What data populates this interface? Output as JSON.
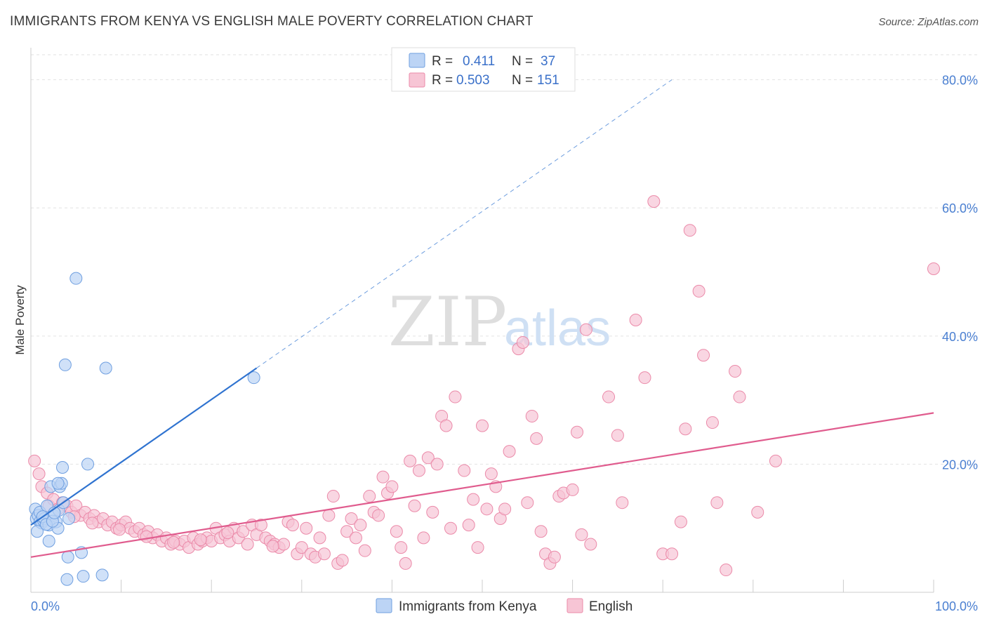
{
  "title": "IMMIGRANTS FROM KENYA VS ENGLISH MALE POVERTY CORRELATION CHART",
  "source": "Source: ZipAtlas.com",
  "watermark": {
    "zip": "ZIP",
    "atlas": "atlas"
  },
  "colors": {
    "blue_fill": "#bcd4f5",
    "blue_stroke": "#6f9fe0",
    "blue_line": "#2f73d0",
    "pink_fill": "#f7c5d5",
    "pink_stroke": "#eb8aa9",
    "pink_line": "#e05c8e",
    "tick_label": "#4a7fd1",
    "grid": "#e2e2e2"
  },
  "legend": {
    "rows": [
      {
        "r_label": "R =",
        "r_value": "0.411",
        "n_label": "N =",
        "n_value": "37",
        "color": "blue"
      },
      {
        "r_label": "R =",
        "r_value": "0.503",
        "n_label": "N =",
        "n_value": "151",
        "color": "pink"
      }
    ]
  },
  "chart_data": {
    "type": "scatter",
    "title": "IMMIGRANTS FROM KENYA VS ENGLISH MALE POVERTY CORRELATION CHART",
    "xlabel": "",
    "ylabel": "Male Poverty",
    "xlim": [
      0,
      100
    ],
    "ylim": [
      0,
      85
    ],
    "x_tick_labels": [
      "0.0%",
      "100.0%"
    ],
    "y_ticks": [
      20,
      40,
      60,
      80
    ],
    "y_tick_labels": [
      "20.0%",
      "40.0%",
      "60.0%",
      "80.0%"
    ],
    "grid": true,
    "legend_position": "top-center",
    "series": [
      {
        "name": "Immigrants from Kenya",
        "color": "blue",
        "trend": {
          "x0": 0,
          "y0": 10.5,
          "x1": 25,
          "y1": 35.0,
          "dash_to_x": 71,
          "dash_to_y": 80.0
        },
        "points": [
          [
            0.5,
            13.0
          ],
          [
            0.6,
            11.5
          ],
          [
            0.8,
            12.0
          ],
          [
            1.0,
            11.0
          ],
          [
            1.2,
            10.8
          ],
          [
            1.4,
            11.2
          ],
          [
            0.7,
            9.5
          ],
          [
            1.0,
            12.5
          ],
          [
            1.5,
            11.5
          ],
          [
            1.8,
            13.5
          ],
          [
            2.0,
            10.5
          ],
          [
            2.2,
            16.5
          ],
          [
            2.5,
            12.0
          ],
          [
            2.8,
            11.0
          ],
          [
            3.0,
            10.0
          ],
          [
            3.1,
            12.8
          ],
          [
            3.2,
            16.5
          ],
          [
            3.4,
            17.0
          ],
          [
            3.6,
            14.0
          ],
          [
            3.0,
            17.0
          ],
          [
            2.0,
            8.0
          ],
          [
            3.5,
            19.5
          ],
          [
            4.2,
            11.5
          ],
          [
            5.0,
            49.0
          ],
          [
            3.8,
            35.5
          ],
          [
            8.3,
            35.0
          ],
          [
            6.3,
            20.0
          ],
          [
            4.1,
            5.5
          ],
          [
            5.6,
            6.2
          ],
          [
            4.0,
            2.0
          ],
          [
            5.8,
            2.5
          ],
          [
            7.9,
            2.7
          ],
          [
            24.7,
            33.5
          ],
          [
            1.3,
            11.8
          ],
          [
            1.7,
            10.6
          ],
          [
            2.4,
            11.1
          ],
          [
            2.6,
            12.4
          ]
        ]
      },
      {
        "name": "English",
        "color": "pink",
        "trend": {
          "x0": 0,
          "y0": 5.5,
          "x1": 100,
          "y1": 28.0
        },
        "points": [
          [
            0.4,
            20.5
          ],
          [
            0.9,
            18.5
          ],
          [
            1.2,
            16.5
          ],
          [
            1.8,
            15.5
          ],
          [
            2.0,
            13.5
          ],
          [
            2.5,
            14.5
          ],
          [
            3.0,
            13.0
          ],
          [
            3.5,
            14.0
          ],
          [
            4.0,
            13.5
          ],
          [
            4.5,
            12.5
          ],
          [
            5.0,
            13.5
          ],
          [
            5.5,
            12.0
          ],
          [
            6.0,
            12.5
          ],
          [
            6.5,
            11.5
          ],
          [
            7.0,
            12.0
          ],
          [
            7.5,
            11.0
          ],
          [
            8.0,
            11.5
          ],
          [
            8.5,
            10.5
          ],
          [
            9.0,
            11.0
          ],
          [
            9.5,
            10.0
          ],
          [
            10.0,
            10.5
          ],
          [
            10.5,
            11.0
          ],
          [
            11.0,
            10.0
          ],
          [
            11.5,
            9.5
          ],
          [
            12.0,
            10.0
          ],
          [
            12.5,
            9.0
          ],
          [
            13.0,
            9.5
          ],
          [
            13.5,
            8.5
          ],
          [
            14.0,
            9.0
          ],
          [
            14.5,
            8.0
          ],
          [
            15.0,
            8.5
          ],
          [
            15.5,
            7.5
          ],
          [
            16.0,
            8.0
          ],
          [
            16.5,
            7.5
          ],
          [
            17.0,
            8.0
          ],
          [
            17.5,
            7.0
          ],
          [
            18.0,
            8.5
          ],
          [
            18.5,
            7.5
          ],
          [
            19.0,
            8.0
          ],
          [
            19.5,
            8.5
          ],
          [
            20.0,
            8.0
          ],
          [
            20.5,
            10.0
          ],
          [
            21.0,
            8.5
          ],
          [
            21.5,
            9.0
          ],
          [
            22.0,
            8.0
          ],
          [
            22.5,
            10.0
          ],
          [
            23.0,
            8.5
          ],
          [
            23.5,
            9.5
          ],
          [
            24.0,
            7.5
          ],
          [
            24.5,
            10.5
          ],
          [
            25.0,
            9.0
          ],
          [
            25.5,
            10.5
          ],
          [
            26.0,
            8.5
          ],
          [
            26.5,
            8.0
          ],
          [
            27.0,
            7.5
          ],
          [
            27.5,
            7.0
          ],
          [
            28.0,
            7.5
          ],
          [
            28.5,
            11.0
          ],
          [
            29.0,
            10.5
          ],
          [
            29.5,
            6.0
          ],
          [
            30.0,
            7.0
          ],
          [
            30.5,
            10.0
          ],
          [
            31.0,
            6.0
          ],
          [
            31.5,
            5.5
          ],
          [
            32.0,
            8.5
          ],
          [
            32.5,
            6.0
          ],
          [
            33.0,
            12.0
          ],
          [
            33.5,
            15.0
          ],
          [
            34.0,
            4.5
          ],
          [
            34.5,
            5.0
          ],
          [
            35.0,
            9.5
          ],
          [
            35.5,
            11.5
          ],
          [
            36.0,
            8.5
          ],
          [
            36.5,
            10.5
          ],
          [
            37.0,
            6.5
          ],
          [
            37.5,
            15.0
          ],
          [
            38.0,
            12.5
          ],
          [
            38.5,
            12.0
          ],
          [
            39.0,
            18.0
          ],
          [
            39.5,
            15.5
          ],
          [
            40.0,
            16.5
          ],
          [
            40.5,
            9.5
          ],
          [
            41.0,
            7.0
          ],
          [
            41.5,
            4.5
          ],
          [
            42.0,
            20.5
          ],
          [
            42.5,
            13.5
          ],
          [
            43.0,
            19.0
          ],
          [
            43.5,
            8.5
          ],
          [
            44.0,
            21.0
          ],
          [
            44.5,
            12.5
          ],
          [
            45.0,
            20.0
          ],
          [
            45.5,
            27.5
          ],
          [
            46.0,
            26.0
          ],
          [
            46.5,
            10.0
          ],
          [
            47.0,
            30.5
          ],
          [
            48.0,
            19.0
          ],
          [
            48.5,
            10.5
          ],
          [
            49.0,
            14.5
          ],
          [
            49.5,
            7.0
          ],
          [
            50.0,
            26.0
          ],
          [
            50.5,
            13.0
          ],
          [
            51.0,
            18.5
          ],
          [
            51.5,
            16.5
          ],
          [
            52.0,
            11.5
          ],
          [
            52.5,
            13.0
          ],
          [
            53.0,
            22.0
          ],
          [
            54.0,
            38.0
          ],
          [
            54.5,
            39.0
          ],
          [
            55.0,
            14.0
          ],
          [
            55.5,
            27.5
          ],
          [
            56.0,
            24.0
          ],
          [
            56.5,
            9.5
          ],
          [
            57.0,
            6.0
          ],
          [
            57.5,
            4.5
          ],
          [
            58.0,
            5.5
          ],
          [
            58.5,
            15.0
          ],
          [
            59.0,
            15.5
          ],
          [
            60.0,
            16.0
          ],
          [
            60.5,
            25.0
          ],
          [
            61.0,
            9.0
          ],
          [
            61.5,
            41.0
          ],
          [
            62.0,
            7.5
          ],
          [
            64.0,
            30.5
          ],
          [
            65.0,
            24.5
          ],
          [
            65.5,
            14.0
          ],
          [
            67.0,
            42.5
          ],
          [
            68.0,
            33.5
          ],
          [
            69.0,
            61.0
          ],
          [
            70.0,
            6.0
          ],
          [
            71.0,
            6.0
          ],
          [
            72.0,
            11.0
          ],
          [
            72.5,
            25.5
          ],
          [
            73.0,
            56.5
          ],
          [
            74.0,
            47.0
          ],
          [
            74.5,
            37.0
          ],
          [
            75.5,
            26.5
          ],
          [
            76.0,
            14.0
          ],
          [
            77.0,
            3.5
          ],
          [
            78.0,
            34.5
          ],
          [
            78.5,
            30.5
          ],
          [
            80.5,
            12.5
          ],
          [
            82.5,
            20.5
          ],
          [
            100.0,
            50.5
          ],
          [
            4.8,
            11.8
          ],
          [
            6.8,
            10.8
          ],
          [
            9.8,
            9.8
          ],
          [
            12.8,
            8.7
          ],
          [
            15.8,
            7.8
          ],
          [
            18.8,
            8.2
          ],
          [
            21.8,
            9.3
          ],
          [
            26.8,
            7.2
          ]
        ]
      }
    ]
  }
}
